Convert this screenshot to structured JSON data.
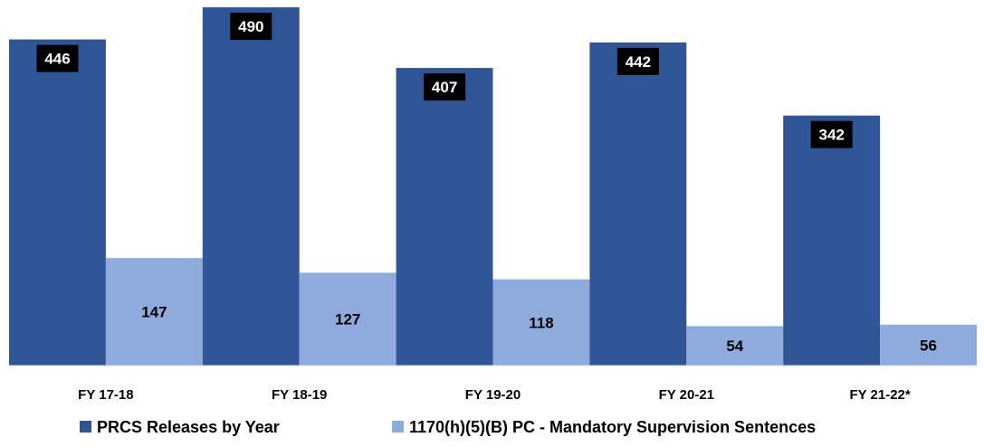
{
  "chart_data": {
    "type": "bar",
    "title": "",
    "xlabel": "",
    "ylabel": "",
    "ylim": [
      0,
      500
    ],
    "grid": false,
    "legend_position": "bottom",
    "categories": [
      "FY 17-18",
      "FY 18-19",
      "FY 19-20",
      "FY 20-21",
      "FY 21-22*"
    ],
    "series": [
      {
        "name": "PRCS Releases by Year",
        "color": "#2f5597",
        "values": [
          446,
          490,
          407,
          442,
          342
        ]
      },
      {
        "name": "1170(h)(5)(B) PC - Mandatory Supervision Sentences",
        "color": "#8faadc",
        "values": [
          147,
          127,
          118,
          54,
          56
        ]
      }
    ]
  }
}
